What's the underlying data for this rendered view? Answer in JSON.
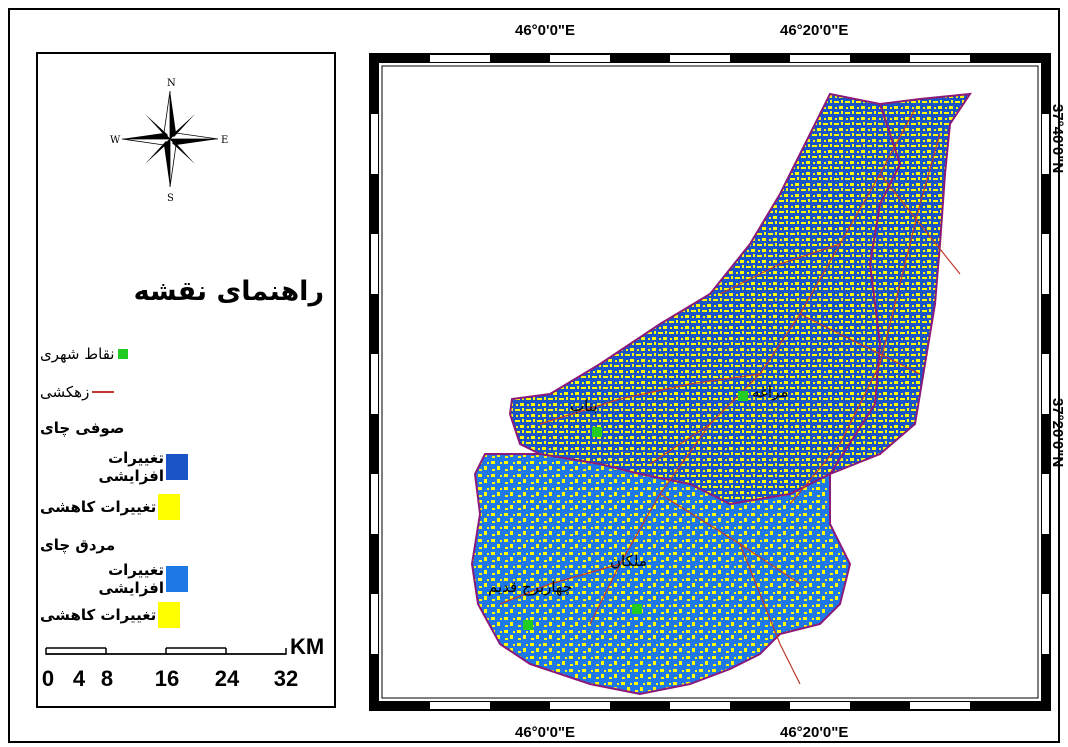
{
  "map": {
    "title": "راهنمای نقشه",
    "top_labels": [
      "46°0'0\"E",
      "46°20'0\"E"
    ],
    "bottom_labels": [
      "46°0'0\"E",
      "46°20'0\"E"
    ],
    "right_labels": [
      "37°40'0\"N",
      "37°20'0\"N"
    ],
    "compass": {
      "n": "N",
      "s": "S",
      "e": "E",
      "w": "W"
    },
    "colors": {
      "increase_soofi": "#1a55c8",
      "increase_mardogh": "#1e78e6",
      "decrease": "#ffff00",
      "city": "#22cc22",
      "river": "#c0392b",
      "basin_outline": "#8b1a7a"
    }
  },
  "legend": {
    "city_points": "نقاط شهری",
    "rivers": "زهکشی",
    "basin_1": "صوفی چای",
    "basin_2": "مردق چای",
    "increase": "تغییرات افزایشی",
    "decrease": "تغییرات کاهشی"
  },
  "cities": [
    {
      "name": "مراغه"
    },
    {
      "name": "بناب"
    },
    {
      "name": "ملکان"
    },
    {
      "name": "چهاربرج قدیم"
    }
  ],
  "scale": {
    "unit": "KM",
    "ticks": [
      "0",
      "4",
      "8",
      "16",
      "24",
      "32"
    ]
  }
}
